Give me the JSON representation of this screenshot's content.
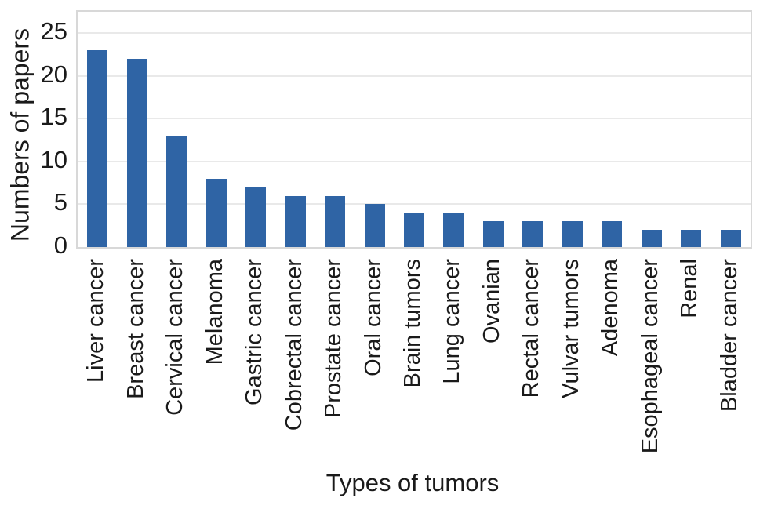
{
  "chart_data": {
    "type": "bar",
    "title": "",
    "xlabel": "Types of tumors",
    "ylabel": "Numbers of papers",
    "categories": [
      "Liver cancer",
      "Breast cancer",
      "Cervical cancer",
      "Melanoma",
      "Gastric cancer",
      "Cobrectal cancer",
      "Prostate cancer",
      "Oral cancer",
      "Brain tumors",
      "Lung cancer",
      "Ovanian",
      "Rectal cancer",
      "Vulvar tumors",
      "Adenoma",
      "Esophageal cancer",
      "Renal",
      "Bladder cancer"
    ],
    "values": [
      23,
      22,
      13,
      8,
      7,
      6,
      6,
      5,
      4,
      4,
      3,
      3,
      3,
      3,
      2,
      2,
      2
    ],
    "yticks": [
      0,
      5,
      10,
      15,
      20,
      25
    ],
    "ylim": [
      0,
      27.5
    ],
    "grid": "horizontal",
    "legend": "none",
    "colors": {
      "bar": "#2f64a5",
      "gridline": "#e9e9e9",
      "spine": "#d8d8d8",
      "text": "#1a1a1a"
    }
  }
}
